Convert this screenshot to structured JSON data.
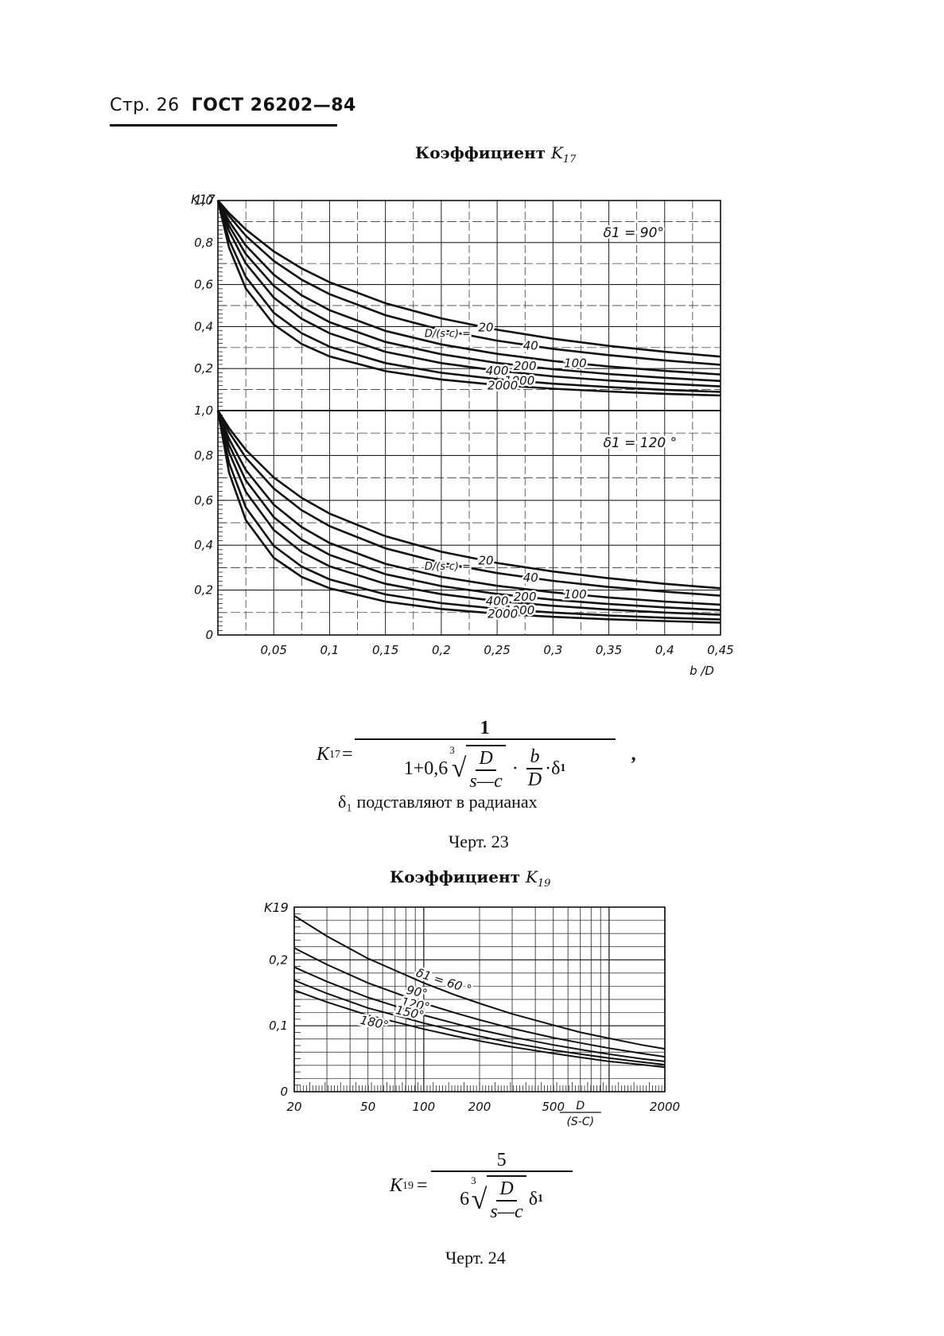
{
  "header": {
    "page": "Стр. 26",
    "standard": "ГОСТ 26202—84"
  },
  "figure23": {
    "title_word": "Коэффициент",
    "title_symbol": "K",
    "title_sub": "17",
    "formula": {
      "lhs": "K",
      "lhs_sub": "17",
      "numerator": "1",
      "den_prefix": "1+0,6",
      "root_index": "3",
      "rad_num": "D",
      "rad_den": "s—c",
      "mult": "·",
      "b_num": "b",
      "b_den": "D",
      "delta": "·δ",
      "delta_sub": "1",
      "trail": ","
    },
    "note": "δ₁ подставляют в радианах",
    "caption": "Черт. 23"
  },
  "figure24": {
    "title_word": "Коэффициент",
    "title_symbol": "K",
    "title_sub": "19",
    "formula": {
      "lhs": "K",
      "lhs_sub": "19",
      "numerator": "5",
      "coef": "6",
      "root_index": "3",
      "rad_num": "D",
      "rad_den": "s—c",
      "delta": "δ",
      "delta_sub": "1"
    },
    "caption": "Черт. 24"
  },
  "chart_data": [
    {
      "type": "line",
      "panel": "upper",
      "ylabel": "K17",
      "annotation": "δ1 = 90°",
      "ratio_label": "D/(s-c) = ",
      "x_range": [
        0,
        0.45
      ],
      "ylim": [
        0,
        1.0
      ],
      "yticks": [
        "0,2",
        "0,4",
        "0,6",
        "0,8",
        "1,0"
      ],
      "grid": true,
      "x": [
        0,
        0.01,
        0.025,
        0.05,
        0.075,
        0.1,
        0.15,
        0.2,
        0.25,
        0.3,
        0.35,
        0.4,
        0.45
      ],
      "series": [
        {
          "name": "20",
          "values": [
            1,
            0.94,
            0.862,
            0.758,
            0.677,
            0.611,
            0.511,
            0.439,
            0.385,
            0.342,
            0.308,
            0.28,
            0.257
          ]
        },
        {
          "name": "40",
          "values": [
            1,
            0.926,
            0.832,
            0.713,
            0.623,
            0.554,
            0.454,
            0.384,
            0.333,
            0.294,
            0.264,
            0.239,
            0.218
          ]
        },
        {
          "name": "100",
          "values": [
            1,
            0.902,
            0.786,
            0.647,
            0.549,
            0.478,
            0.379,
            0.315,
            0.27,
            0.236,
            0.21,
            0.189,
            0.172
          ]
        },
        {
          "name": "200",
          "values": [
            1,
            0.88,
            0.745,
            0.594,
            0.493,
            0.421,
            0.327,
            0.268,
            0.227,
            0.197,
            0.174,
            0.156,
            0.141
          ]
        },
        {
          "name": "400",
          "values": [
            1,
            0.854,
            0.7,
            0.538,
            0.437,
            0.368,
            0.28,
            0.226,
            0.19,
            0.163,
            0.143,
            0.128,
            0.115
          ]
        },
        {
          "name": "1000",
          "values": [
            1,
            0.813,
            0.636,
            0.466,
            0.368,
            0.304,
            0.226,
            0.18,
            0.15,
            0.128,
            0.112,
            0.099,
            0.089
          ]
        },
        {
          "name": "2000",
          "values": [
            1,
            0.776,
            0.581,
            0.41,
            0.317,
            0.258,
            0.188,
            0.148,
            0.122,
            0.104,
            0.091,
            0.08,
            0.072
          ]
        }
      ]
    },
    {
      "type": "line",
      "panel": "lower",
      "ylabel": "",
      "annotation": "δ1 = 120 °",
      "ratio_label": "D/(s-c) = ",
      "xlabel": "b /D",
      "x_range": [
        0,
        0.45
      ],
      "xticks": [
        "0,05",
        "0,1",
        "0,15",
        "0,2",
        "0,25",
        "0,3",
        "0,35",
        "0,4",
        "0,45"
      ],
      "ylim": [
        0,
        1.0
      ],
      "yticks": [
        "0",
        "0,2",
        "0,4",
        "0,6",
        "0,8",
        "1,0"
      ],
      "grid": true,
      "x": [
        0,
        0.01,
        0.025,
        0.05,
        0.075,
        0.1,
        0.15,
        0.2,
        0.25,
        0.3,
        0.35,
        0.4,
        0.45
      ],
      "series": [
        {
          "name": "20",
          "values": [
            1,
            0.922,
            0.825,
            0.702,
            0.611,
            0.541,
            0.44,
            0.371,
            0.321,
            0.283,
            0.253,
            0.228,
            0.208
          ]
        },
        {
          "name": "40",
          "values": [
            1,
            0.904,
            0.79,
            0.653,
            0.556,
            0.485,
            0.386,
            0.322,
            0.276,
            0.241,
            0.214,
            0.193,
            0.175
          ]
        },
        {
          "name": "100",
          "values": [
            1,
            0.874,
            0.735,
            0.581,
            0.481,
            0.41,
            0.317,
            0.259,
            0.219,
            0.19,
            0.167,
            0.149,
            0.135
          ]
        },
        {
          "name": "200",
          "values": [
            1,
            0.847,
            0.689,
            0.525,
            0.425,
            0.357,
            0.271,
            0.218,
            0.183,
            0.157,
            0.138,
            0.123,
            0.111
          ]
        },
        {
          "name": "400",
          "values": [
            1,
            0.815,
            0.638,
            0.468,
            0.37,
            0.306,
            0.228,
            0.182,
            0.151,
            0.13,
            0.113,
            0.1,
            0.09
          ]
        },
        {
          "name": "1000",
          "values": [
            1,
            0.767,
            0.568,
            0.397,
            0.305,
            0.248,
            0.181,
            0.142,
            0.117,
            0.1,
            0.087,
            0.077,
            0.069
          ]
        },
        {
          "name": "2000",
          "values": [
            1,
            0.724,
            0.512,
            0.344,
            0.259,
            0.208,
            0.149,
            0.116,
            0.095,
            0.081,
            0.07,
            0.062,
            0.055
          ]
        }
      ]
    },
    {
      "type": "line",
      "panel": "k19",
      "ylabel": "K19",
      "xlabel_num": "D",
      "xlabel_den": "(S-C)",
      "x_scale": "log",
      "x_range": [
        20,
        2000
      ],
      "xticks": [
        "20",
        "50",
        "100",
        "200",
        "500",
        "2000"
      ],
      "ylim": [
        0,
        0.28
      ],
      "yticks": [
        "0",
        "0,1",
        "0,2"
      ],
      "grid": true,
      "x": [
        20,
        30,
        50,
        70,
        100,
        150,
        200,
        300,
        500,
        700,
        1000,
        1500,
        2000
      ],
      "series": [
        {
          "name": "δ1 = 60 °",
          "values": [
            0.267,
            0.236,
            0.202,
            0.184,
            0.165,
            0.146,
            0.134,
            0.118,
            0.101,
            0.09,
            0.081,
            0.071,
            0.065
          ]
        },
        {
          "name": "90°",
          "values": [
            0.218,
            0.193,
            0.165,
            0.15,
            0.134,
            0.119,
            0.109,
            0.096,
            0.082,
            0.074,
            0.066,
            0.058,
            0.053
          ]
        },
        {
          "name": "120°",
          "values": [
            0.189,
            0.167,
            0.143,
            0.13,
            0.116,
            0.103,
            0.094,
            0.083,
            0.071,
            0.064,
            0.057,
            0.05,
            0.046
          ]
        },
        {
          "name": "150°",
          "values": [
            0.169,
            0.149,
            0.127,
            0.116,
            0.104,
            0.092,
            0.084,
            0.074,
            0.063,
            0.057,
            0.051,
            0.045,
            0.041
          ]
        },
        {
          "name": "180°",
          "values": [
            0.154,
            0.136,
            0.116,
            0.106,
            0.095,
            0.084,
            0.077,
            0.068,
            0.058,
            0.052,
            0.046,
            0.041,
            0.037
          ]
        }
      ]
    }
  ]
}
